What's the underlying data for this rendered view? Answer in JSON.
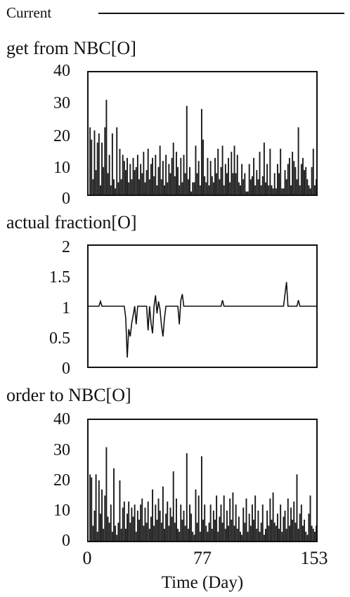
{
  "legend": {
    "run_label": "Current"
  },
  "x_axis": {
    "label": "Time (Day)",
    "ticks": [
      "0",
      "77",
      "153"
    ],
    "range": [
      0,
      153
    ]
  },
  "chart_data": [
    {
      "type": "bar",
      "title": "get from NBC[O]",
      "ylim": [
        0,
        40
      ],
      "yticks": [
        "40",
        "30",
        "20",
        "10",
        "0"
      ],
      "xlim": [
        0,
        153
      ],
      "x": [
        1,
        2,
        3,
        4,
        5,
        6,
        7,
        8,
        9,
        10,
        11,
        12,
        13,
        14,
        15,
        16,
        17,
        18,
        19,
        20,
        21,
        22,
        23,
        24,
        25,
        26,
        27,
        28,
        29,
        30,
        31,
        32,
        33,
        34,
        35,
        36,
        37,
        38,
        39,
        40,
        41,
        42,
        43,
        44,
        45,
        46,
        47,
        48,
        49,
        50,
        51,
        52,
        53,
        54,
        55,
        56,
        57,
        58,
        59,
        60,
        61,
        62,
        63,
        64,
        65,
        66,
        67,
        68,
        69,
        70,
        71,
        72,
        73,
        74,
        75,
        76,
        77,
        78,
        79,
        80,
        81,
        82,
        83,
        84,
        85,
        86,
        87,
        88,
        89,
        90,
        91,
        92,
        93,
        94,
        95,
        96,
        97,
        98,
        99,
        100,
        101,
        102,
        103,
        104,
        105,
        106,
        107,
        108,
        109,
        110,
        111,
        112,
        113,
        114,
        115,
        116,
        117,
        118,
        119,
        120,
        121,
        122,
        123,
        124,
        125,
        126,
        127,
        128,
        129,
        130,
        131,
        132,
        133,
        134,
        135,
        136,
        137,
        138,
        139,
        140,
        141,
        142,
        143,
        144,
        145,
        146,
        147,
        148,
        149,
        150,
        151,
        152,
        153
      ],
      "values": [
        22,
        18,
        5,
        21,
        8,
        17,
        20,
        3,
        17,
        9,
        22,
        31,
        7,
        13,
        3,
        20,
        5,
        2,
        22,
        4,
        15,
        5,
        13,
        11,
        8,
        12,
        4,
        10,
        5,
        12,
        8,
        9,
        13,
        5,
        10,
        7,
        14,
        4,
        8,
        15,
        5,
        10,
        12,
        6,
        13,
        3,
        9,
        16,
        5,
        11,
        3,
        13,
        4,
        10,
        7,
        12,
        17,
        6,
        14,
        9,
        3,
        12,
        4,
        13,
        7,
        29,
        5,
        9,
        1,
        4,
        4,
        16,
        7,
        11,
        3,
        28,
        18,
        6,
        4,
        12,
        3,
        11,
        6,
        4,
        12,
        7,
        15,
        5,
        9,
        16,
        3,
        10,
        7,
        12,
        4,
        14,
        7,
        16,
        7,
        13,
        4,
        3,
        10,
        5,
        7,
        1,
        1,
        10,
        5,
        6,
        12,
        3,
        8,
        5,
        14,
        3,
        6,
        17,
        4,
        10,
        3,
        15,
        3,
        2,
        7,
        2,
        10,
        7,
        15,
        2,
        2,
        8,
        5,
        10,
        12,
        3,
        14,
        11,
        9,
        5,
        22,
        3,
        10,
        12,
        8,
        9,
        5,
        3,
        2,
        9,
        15,
        3,
        5
      ]
    },
    {
      "type": "line",
      "title": "actual fraction[O]",
      "ylim": [
        0,
        2
      ],
      "yticks": [
        "2",
        "1.5",
        "1",
        "0.5",
        "0"
      ],
      "xlim": [
        0,
        153
      ],
      "x": [
        0,
        7,
        8,
        9,
        24,
        25,
        26,
        27,
        28,
        29,
        30,
        31,
        32,
        33,
        39,
        40,
        41,
        42,
        43,
        44,
        45,
        46,
        47,
        48,
        49,
        50,
        51,
        52,
        53,
        60,
        61,
        62,
        63,
        64,
        65,
        66,
        89,
        90,
        91,
        131,
        132,
        133,
        134,
        135,
        140,
        141,
        142,
        153
      ],
      "values": [
        1,
        1,
        1.08,
        1,
        1,
        0.8,
        0.15,
        0.62,
        0.5,
        0.72,
        0.85,
        1,
        0.7,
        1,
        1,
        0.6,
        1,
        0.72,
        0.55,
        1,
        1.18,
        0.88,
        1.08,
        0.95,
        0.68,
        0.5,
        0.8,
        1,
        1,
        1,
        0.7,
        1.1,
        1.2,
        1,
        1,
        1,
        1,
        1.1,
        1,
        1,
        1.2,
        1.4,
        1,
        1,
        1,
        1.1,
        1,
        1
      ]
    },
    {
      "type": "bar",
      "title": "order to NBC[O]",
      "ylim": [
        0,
        40
      ],
      "yticks": [
        "40",
        "30",
        "20",
        "10",
        "0"
      ],
      "xlim": [
        0,
        153
      ],
      "x": [
        1,
        2,
        3,
        4,
        5,
        6,
        7,
        8,
        9,
        10,
        11,
        12,
        13,
        14,
        15,
        16,
        17,
        18,
        19,
        20,
        21,
        22,
        23,
        24,
        25,
        26,
        27,
        28,
        29,
        30,
        31,
        32,
        33,
        34,
        35,
        36,
        37,
        38,
        39,
        40,
        41,
        42,
        43,
        44,
        45,
        46,
        47,
        48,
        49,
        50,
        51,
        52,
        53,
        54,
        55,
        56,
        57,
        58,
        59,
        60,
        61,
        62,
        63,
        64,
        65,
        66,
        67,
        68,
        69,
        70,
        71,
        72,
        73,
        74,
        75,
        76,
        77,
        78,
        79,
        80,
        81,
        82,
        83,
        84,
        85,
        86,
        87,
        88,
        89,
        90,
        91,
        92,
        93,
        94,
        95,
        96,
        97,
        98,
        99,
        100,
        101,
        102,
        103,
        104,
        105,
        106,
        107,
        108,
        109,
        110,
        111,
        112,
        113,
        114,
        115,
        116,
        117,
        118,
        119,
        120,
        121,
        122,
        123,
        124,
        125,
        126,
        127,
        128,
        129,
        130,
        131,
        132,
        133,
        134,
        135,
        136,
        137,
        138,
        139,
        140,
        141,
        142,
        143,
        144,
        145,
        146,
        147,
        148,
        149,
        150,
        151,
        152,
        153
      ],
      "values": [
        22,
        21,
        5,
        10,
        22,
        3,
        20,
        9,
        17,
        4,
        15,
        31,
        8,
        6,
        12,
        3,
        24,
        5,
        2,
        6,
        20,
        4,
        11,
        13,
        4,
        9,
        13,
        6,
        11,
        8,
        12,
        3,
        10,
        7,
        12,
        14,
        5,
        11,
        6,
        13,
        4,
        8,
        17,
        5,
        12,
        7,
        14,
        10,
        6,
        18,
        4,
        9,
        13,
        5,
        11,
        8,
        23,
        6,
        14,
        4,
        3,
        12,
        7,
        10,
        5,
        29,
        4,
        12,
        9,
        3,
        2,
        17,
        6,
        15,
        3,
        28,
        7,
        12,
        5,
        3,
        6,
        12,
        4,
        10,
        7,
        15,
        3,
        8,
        12,
        6,
        15,
        4,
        10,
        5,
        14,
        7,
        16,
        5,
        12,
        4,
        8,
        3,
        2,
        11,
        6,
        14,
        3,
        9,
        5,
        12,
        7,
        15,
        4,
        10,
        3,
        6,
        12,
        2,
        4,
        10,
        5,
        14,
        7,
        16,
        6,
        5,
        9,
        4,
        12,
        3,
        8,
        10,
        4,
        14,
        5,
        11,
        7,
        13,
        6,
        22,
        4,
        9,
        12,
        5,
        7,
        3,
        2,
        9,
        15,
        5,
        4,
        3,
        5
      ]
    }
  ]
}
